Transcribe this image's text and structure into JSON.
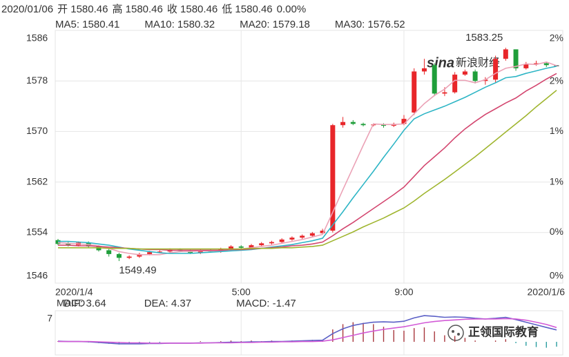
{
  "chart_data": [
    {
      "type": "candlestick",
      "header": [
        "2020/01/06",
        "开 1580.46",
        "高 1580.46",
        "收 1580.46",
        "低 1580.46",
        "0.00%"
      ],
      "watermark": [
        "sina",
        "新浪财经"
      ],
      "categories": [
        "2020/1/4",
        null,
        null,
        null,
        null,
        null,
        null,
        null,
        null,
        null,
        null,
        null,
        null,
        null,
        null,
        null,
        null,
        null,
        "5:00",
        null,
        null,
        null,
        null,
        null,
        null,
        null,
        null,
        null,
        null,
        null,
        null,
        null,
        null,
        null,
        "9:00",
        null,
        null,
        null,
        null,
        null,
        null,
        null,
        null,
        null,
        null,
        null,
        null,
        null,
        null,
        "2020/1/6"
      ],
      "open": [
        1552.8,
        1552.2,
        1552.0,
        1552.4,
        1551.8,
        1551.2,
        1550.6,
        1550.0,
        1550.2,
        1550.6,
        1550.9,
        1551.0,
        1551.3,
        1551.1,
        1550.8,
        1551.2,
        1551.0,
        1551.4,
        1551.8,
        1551.6,
        1552.0,
        1552.3,
        1552.5,
        1552.9,
        1553.2,
        1553.5,
        1553.9,
        1554.3,
        1571.0,
        1571.5,
        1571.2,
        1571.0,
        1571.1,
        1570.9,
        1571.2,
        1573.0,
        1579.5,
        1580.5,
        1576.0,
        1576.2,
        1579.0,
        1579.5,
        1578.0,
        1578.2,
        1581.5,
        1583.0,
        1580.0,
        1580.6,
        1580.8,
        1580.46
      ],
      "high": [
        1553.0,
        1552.5,
        1552.6,
        1552.6,
        1552.0,
        1551.4,
        1550.8,
        1550.4,
        1550.8,
        1551.1,
        1551.2,
        1551.5,
        1551.5,
        1551.3,
        1551.4,
        1551.4,
        1551.6,
        1552.0,
        1552.0,
        1552.2,
        1552.5,
        1552.7,
        1553.1,
        1553.4,
        1553.7,
        1554.1,
        1554.6,
        1571.2,
        1572.3,
        1571.8,
        1571.4,
        1571.3,
        1571.3,
        1571.4,
        1572.6,
        1580.0,
        1581.5,
        1580.8,
        1577.0,
        1579.4,
        1579.8,
        1579.8,
        1578.6,
        1582.0,
        1583.25,
        1583.0,
        1581.0,
        1581.2,
        1581.0,
        1580.46
      ],
      "low": [
        1552.0,
        1551.8,
        1551.8,
        1551.6,
        1551.0,
        1550.2,
        1549.49,
        1549.8,
        1550.0,
        1550.4,
        1550.7,
        1550.8,
        1550.9,
        1550.6,
        1550.6,
        1550.8,
        1550.8,
        1551.2,
        1551.4,
        1551.4,
        1551.8,
        1552.1,
        1552.3,
        1552.7,
        1553.0,
        1553.3,
        1553.7,
        1554.0,
        1570.6,
        1571.0,
        1570.8,
        1570.8,
        1570.6,
        1570.7,
        1571.0,
        1572.6,
        1579.0,
        1575.6,
        1575.6,
        1576.0,
        1578.8,
        1577.6,
        1577.4,
        1577.8,
        1581.2,
        1579.6,
        1579.8,
        1580.4,
        1580.2,
        1580.46
      ],
      "close": [
        1552.2,
        1552.0,
        1552.4,
        1551.8,
        1551.2,
        1550.6,
        1550.0,
        1550.2,
        1550.6,
        1550.9,
        1551.0,
        1551.3,
        1551.1,
        1550.8,
        1551.2,
        1551.0,
        1551.4,
        1551.8,
        1551.6,
        1552.0,
        1552.3,
        1552.5,
        1552.9,
        1553.2,
        1553.5,
        1553.9,
        1554.3,
        1571.0,
        1571.5,
        1571.2,
        1571.0,
        1571.1,
        1570.9,
        1571.2,
        1572.0,
        1579.5,
        1580.0,
        1576.0,
        1576.2,
        1579.0,
        1579.5,
        1578.0,
        1578.2,
        1581.5,
        1583.0,
        1580.0,
        1580.6,
        1580.8,
        1580.5,
        1580.46
      ],
      "up_color": "#e8262a",
      "down_color": "#1f9e3a",
      "flat_color": "#222222",
      "series": [
        {
          "name": "MA5: 1580.41",
          "color": "#eba2b6",
          "values": [
            1552.4,
            1552.3,
            1552.2,
            1552.1,
            1551.9,
            1551.5,
            1551.0,
            1550.7,
            1550.5,
            1550.5,
            1550.5,
            1550.8,
            1551.0,
            1551.0,
            1551.1,
            1551.1,
            1551.1,
            1551.3,
            1551.4,
            1551.6,
            1551.8,
            1552.0,
            1552.3,
            1552.6,
            1552.9,
            1553.3,
            1553.7,
            1557.2,
            1560.8,
            1564.3,
            1567.8,
            1571.2,
            1571.1,
            1571.1,
            1571.2,
            1572.8,
            1574.4,
            1575.7,
            1576.7,
            1578.1,
            1578.1,
            1577.7,
            1578.2,
            1579.2,
            1580.0,
            1580.3,
            1580.7,
            1580.6,
            1581.0,
            1580.41
          ]
        },
        {
          "name": "MA10: 1580.32",
          "color": "#2db5c5",
          "values": [
            1552.6,
            1552.6,
            1552.5,
            1552.4,
            1552.2,
            1552.0,
            1551.7,
            1551.4,
            1551.2,
            1551.0,
            1550.8,
            1550.7,
            1550.7,
            1550.7,
            1550.8,
            1550.9,
            1551.0,
            1551.1,
            1551.2,
            1551.3,
            1551.5,
            1551.7,
            1551.9,
            1552.1,
            1552.4,
            1552.7,
            1553.1,
            1555.2,
            1557.3,
            1559.5,
            1561.6,
            1563.7,
            1565.9,
            1568.0,
            1570.2,
            1572.0,
            1572.8,
            1573.4,
            1574.0,
            1574.7,
            1575.4,
            1576.2,
            1577.0,
            1577.7,
            1578.5,
            1578.7,
            1579.2,
            1579.6,
            1580.0,
            1580.32
          ]
        },
        {
          "name": "MA20: 1579.18",
          "color": "#d3466f",
          "values": [
            1552.0,
            1552.0,
            1551.9,
            1551.9,
            1551.8,
            1551.7,
            1551.6,
            1551.5,
            1551.4,
            1551.3,
            1551.3,
            1551.2,
            1551.2,
            1551.2,
            1551.2,
            1551.2,
            1551.2,
            1551.3,
            1551.3,
            1551.4,
            1551.5,
            1551.6,
            1551.7,
            1551.9,
            1552.0,
            1552.2,
            1552.5,
            1553.5,
            1554.6,
            1555.6,
            1556.7,
            1557.8,
            1558.9,
            1560.0,
            1561.2,
            1562.9,
            1564.6,
            1566.0,
            1567.4,
            1569.0,
            1570.4,
            1571.6,
            1572.7,
            1573.6,
            1574.5,
            1575.3,
            1576.4,
            1577.3,
            1578.3,
            1579.18
          ]
        },
        {
          "name": "MA30: 1576.52",
          "color": "#9fb52e",
          "values": [
            1551.6,
            1551.6,
            1551.6,
            1551.6,
            1551.6,
            1551.5,
            1551.5,
            1551.5,
            1551.4,
            1551.4,
            1551.4,
            1551.4,
            1551.4,
            1551.4,
            1551.4,
            1551.4,
            1551.4,
            1551.4,
            1551.4,
            1551.5,
            1551.5,
            1551.5,
            1551.6,
            1551.6,
            1551.7,
            1551.8,
            1552.0,
            1552.7,
            1553.4,
            1554.1,
            1554.9,
            1555.6,
            1556.3,
            1557.1,
            1557.9,
            1559.0,
            1560.2,
            1561.3,
            1562.4,
            1563.6,
            1564.8,
            1566.0,
            1567.3,
            1568.6,
            1569.9,
            1571.2,
            1572.5,
            1573.9,
            1575.2,
            1576.52
          ]
        }
      ],
      "ylim": [
        1546,
        1586
      ],
      "yticks": [
        1586,
        1578,
        1570,
        1562,
        1554,
        1546
      ],
      "y2lim": [
        -0.31,
        2.27
      ],
      "y2ticks": [
        {
          "value": 2.27,
          "label": "2%"
        },
        {
          "value": 1.75,
          "label": "2%"
        },
        {
          "value": 1.24,
          "label": "1%"
        },
        {
          "value": 0.72,
          "label": "1%"
        },
        {
          "value": 0.21,
          "label": "0%"
        },
        {
          "value": -0.31,
          "label": "0%"
        }
      ],
      "grid": true
    },
    {
      "type": "macd",
      "title": "MACD",
      "series": [
        {
          "name": "DIF: 3.64",
          "color": "#5a5fc6",
          "values": [
            0.2,
            0.1,
            0.1,
            0,
            -0.2,
            -0.4,
            -0.6,
            -0.6,
            -0.6,
            -0.5,
            -0.5,
            -0.4,
            -0.4,
            -0.4,
            -0.3,
            -0.3,
            -0.2,
            -0.1,
            -0.1,
            0,
            0,
            0.1,
            0.1,
            0.2,
            0.3,
            0.4,
            0.5,
            2.5,
            4.0,
            5.0,
            5.6,
            6.0,
            6.1,
            6.0,
            6.3,
            7.3,
            8.0,
            7.8,
            7.5,
            7.6,
            7.5,
            7.2,
            7.0,
            7.2,
            7.5,
            6.8,
            6.0,
            5.2,
            4.4,
            3.64
          ]
        },
        {
          "name": "DEA: 4.37",
          "color": "#d25ad6",
          "values": [
            0.1,
            0.1,
            0.1,
            0.1,
            0,
            -0.1,
            -0.2,
            -0.3,
            -0.3,
            -0.4,
            -0.4,
            -0.4,
            -0.4,
            -0.4,
            -0.4,
            -0.3,
            -0.3,
            -0.3,
            -0.2,
            -0.2,
            -0.1,
            -0.1,
            0,
            0,
            0.1,
            0.1,
            0.2,
            0.6,
            1.3,
            2.0,
            2.7,
            3.3,
            3.8,
            4.2,
            4.6,
            5.2,
            5.8,
            6.2,
            6.5,
            6.7,
            6.9,
            7.0,
            7.0,
            7.0,
            7.1,
            7.0,
            6.6,
            6.0,
            5.3,
            4.37
          ]
        }
      ],
      "histogram": {
        "name": "MACD: -1.47",
        "color": "#a8373d",
        "up_color": "#a8373d",
        "down_color": "#2a9da0",
        "values": [
          0.2,
          0,
          0,
          -0.2,
          -0.4,
          -0.6,
          -0.8,
          -0.6,
          -0.6,
          -0.2,
          -0.2,
          0,
          0,
          0,
          0.2,
          0,
          0.2,
          0.4,
          0.2,
          0.4,
          0.2,
          0.4,
          0.2,
          0.4,
          0.4,
          0.6,
          0.6,
          3.8,
          5.4,
          6.0,
          5.8,
          5.4,
          4.6,
          3.6,
          3.4,
          4.2,
          4.4,
          3.2,
          2.0,
          1.8,
          1.2,
          0.4,
          0,
          0.4,
          0.8,
          -0.4,
          -1.2,
          -1.6,
          -1.8,
          -1.47
        ]
      },
      "ylim": [
        -4,
        9.5
      ],
      "yticks": [
        7
      ]
    }
  ],
  "logo": "正领国际教育"
}
